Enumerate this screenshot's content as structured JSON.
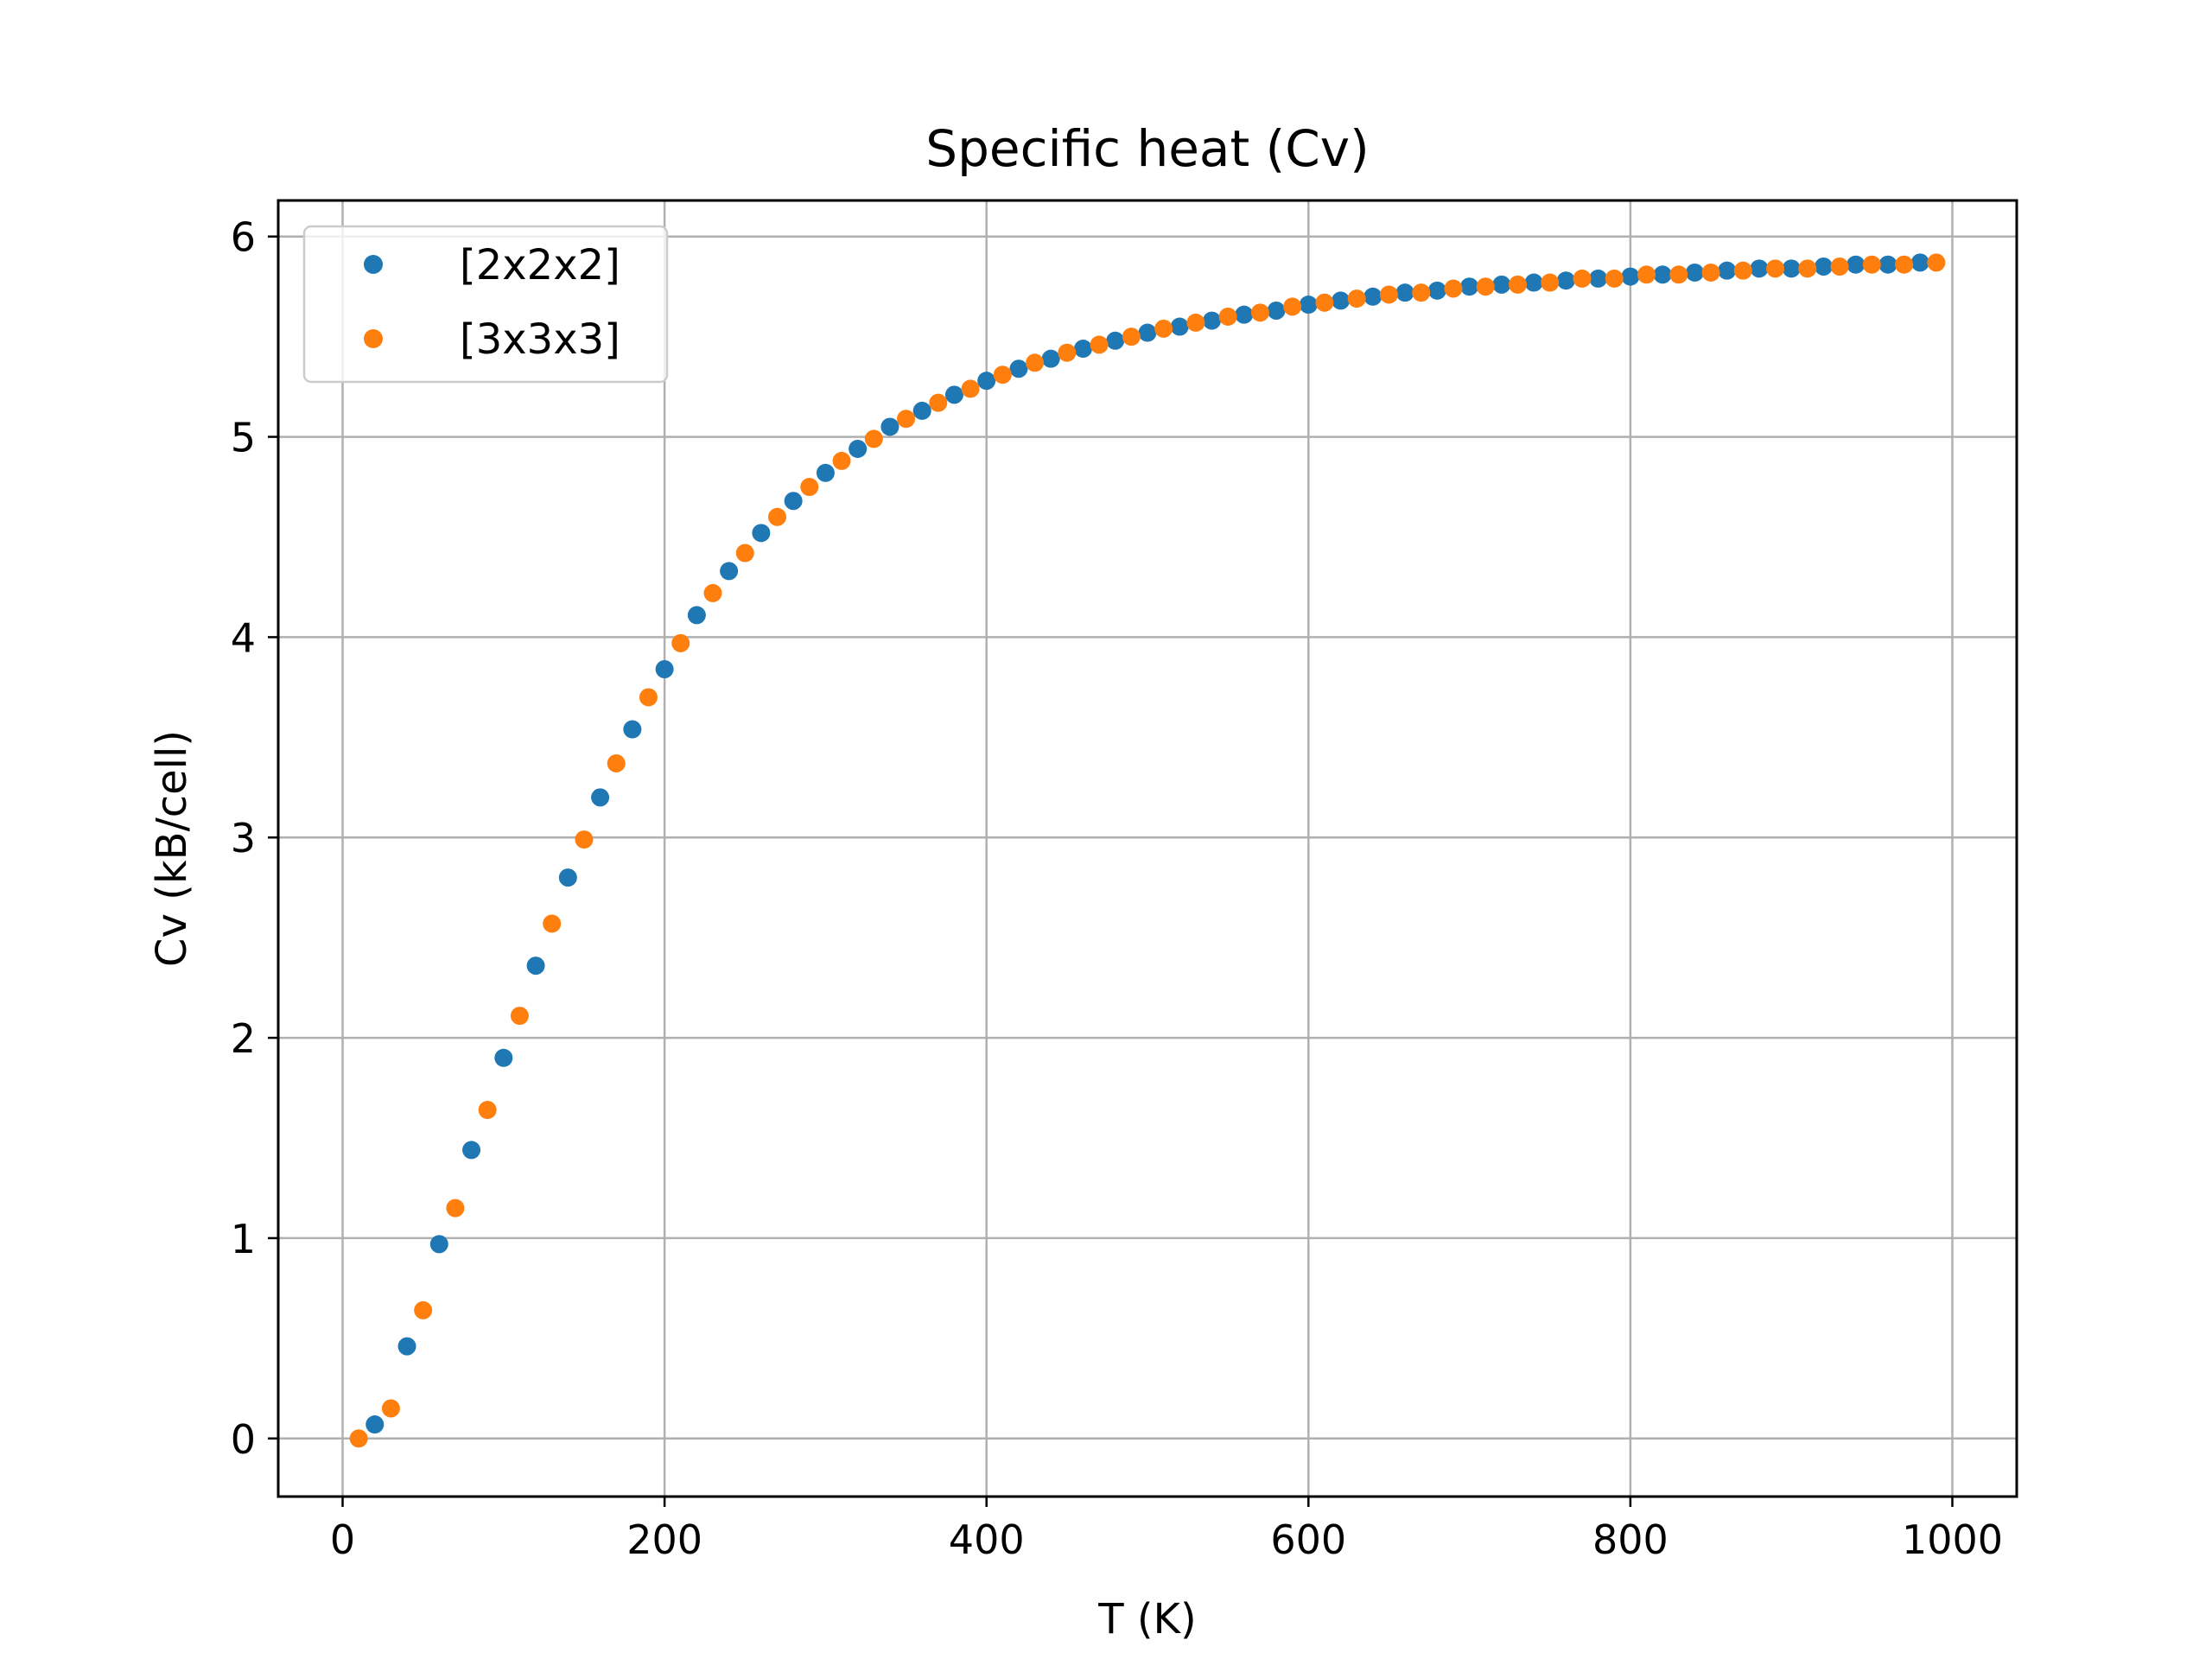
{
  "chart_data": {
    "type": "scatter",
    "title": "Specific heat (Cv)",
    "xlabel": "T (K)",
    "ylabel": "Cv (kB/cell)",
    "xlim": [
      -40,
      1040
    ],
    "ylim": [
      -0.29,
      6.18
    ],
    "xticks": [
      0,
      200,
      400,
      600,
      800,
      1000
    ],
    "yticks": [
      0,
      1,
      2,
      3,
      4,
      5,
      6
    ],
    "grid": true,
    "legend_position": "upper-left",
    "series": [
      {
        "name": "[2x2x2]",
        "color": "#1f77b4",
        "x": [
          20,
          40,
          60,
          80,
          100,
          120,
          140,
          160,
          180,
          200,
          220,
          240,
          260,
          280,
          300,
          320,
          340,
          360,
          380,
          400,
          420,
          440,
          460,
          480,
          500,
          520,
          540,
          560,
          580,
          600,
          620,
          640,
          660,
          680,
          700,
          720,
          740,
          760,
          780,
          800,
          820,
          840,
          860,
          880,
          900,
          920,
          940,
          960,
          980
        ],
        "y": [
          0.07,
          0.46,
          0.97,
          1.44,
          1.9,
          2.36,
          2.8,
          3.2,
          3.54,
          3.84,
          4.11,
          4.33,
          4.52,
          4.68,
          4.82,
          4.94,
          5.05,
          5.13,
          5.21,
          5.28,
          5.34,
          5.39,
          5.44,
          5.48,
          5.52,
          5.55,
          5.58,
          5.61,
          5.63,
          5.66,
          5.68,
          5.7,
          5.72,
          5.73,
          5.75,
          5.76,
          5.77,
          5.78,
          5.79,
          5.8,
          5.81,
          5.82,
          5.83,
          5.84,
          5.84,
          5.85,
          5.86,
          5.86,
          5.87
        ]
      },
      {
        "name": "[3x3x3]",
        "color": "#ff7f0e",
        "x": [
          10,
          30,
          50,
          70,
          90,
          110,
          130,
          150,
          170,
          190,
          210,
          230,
          250,
          270,
          290,
          310,
          330,
          350,
          370,
          390,
          410,
          430,
          450,
          470,
          490,
          510,
          530,
          550,
          570,
          590,
          610,
          630,
          650,
          670,
          690,
          710,
          730,
          750,
          770,
          790,
          810,
          830,
          850,
          870,
          890,
          910,
          930,
          950,
          970,
          990
        ],
        "y": [
          0.0,
          0.15,
          0.64,
          1.15,
          1.64,
          2.11,
          2.57,
          2.99,
          3.37,
          3.7,
          3.97,
          4.22,
          4.42,
          4.6,
          4.75,
          4.88,
          4.99,
          5.09,
          5.17,
          5.24,
          5.31,
          5.37,
          5.42,
          5.46,
          5.5,
          5.54,
          5.57,
          5.6,
          5.62,
          5.65,
          5.67,
          5.69,
          5.71,
          5.72,
          5.74,
          5.75,
          5.76,
          5.77,
          5.79,
          5.79,
          5.81,
          5.81,
          5.82,
          5.83,
          5.84,
          5.84,
          5.85,
          5.86,
          5.86,
          5.87
        ]
      }
    ]
  }
}
